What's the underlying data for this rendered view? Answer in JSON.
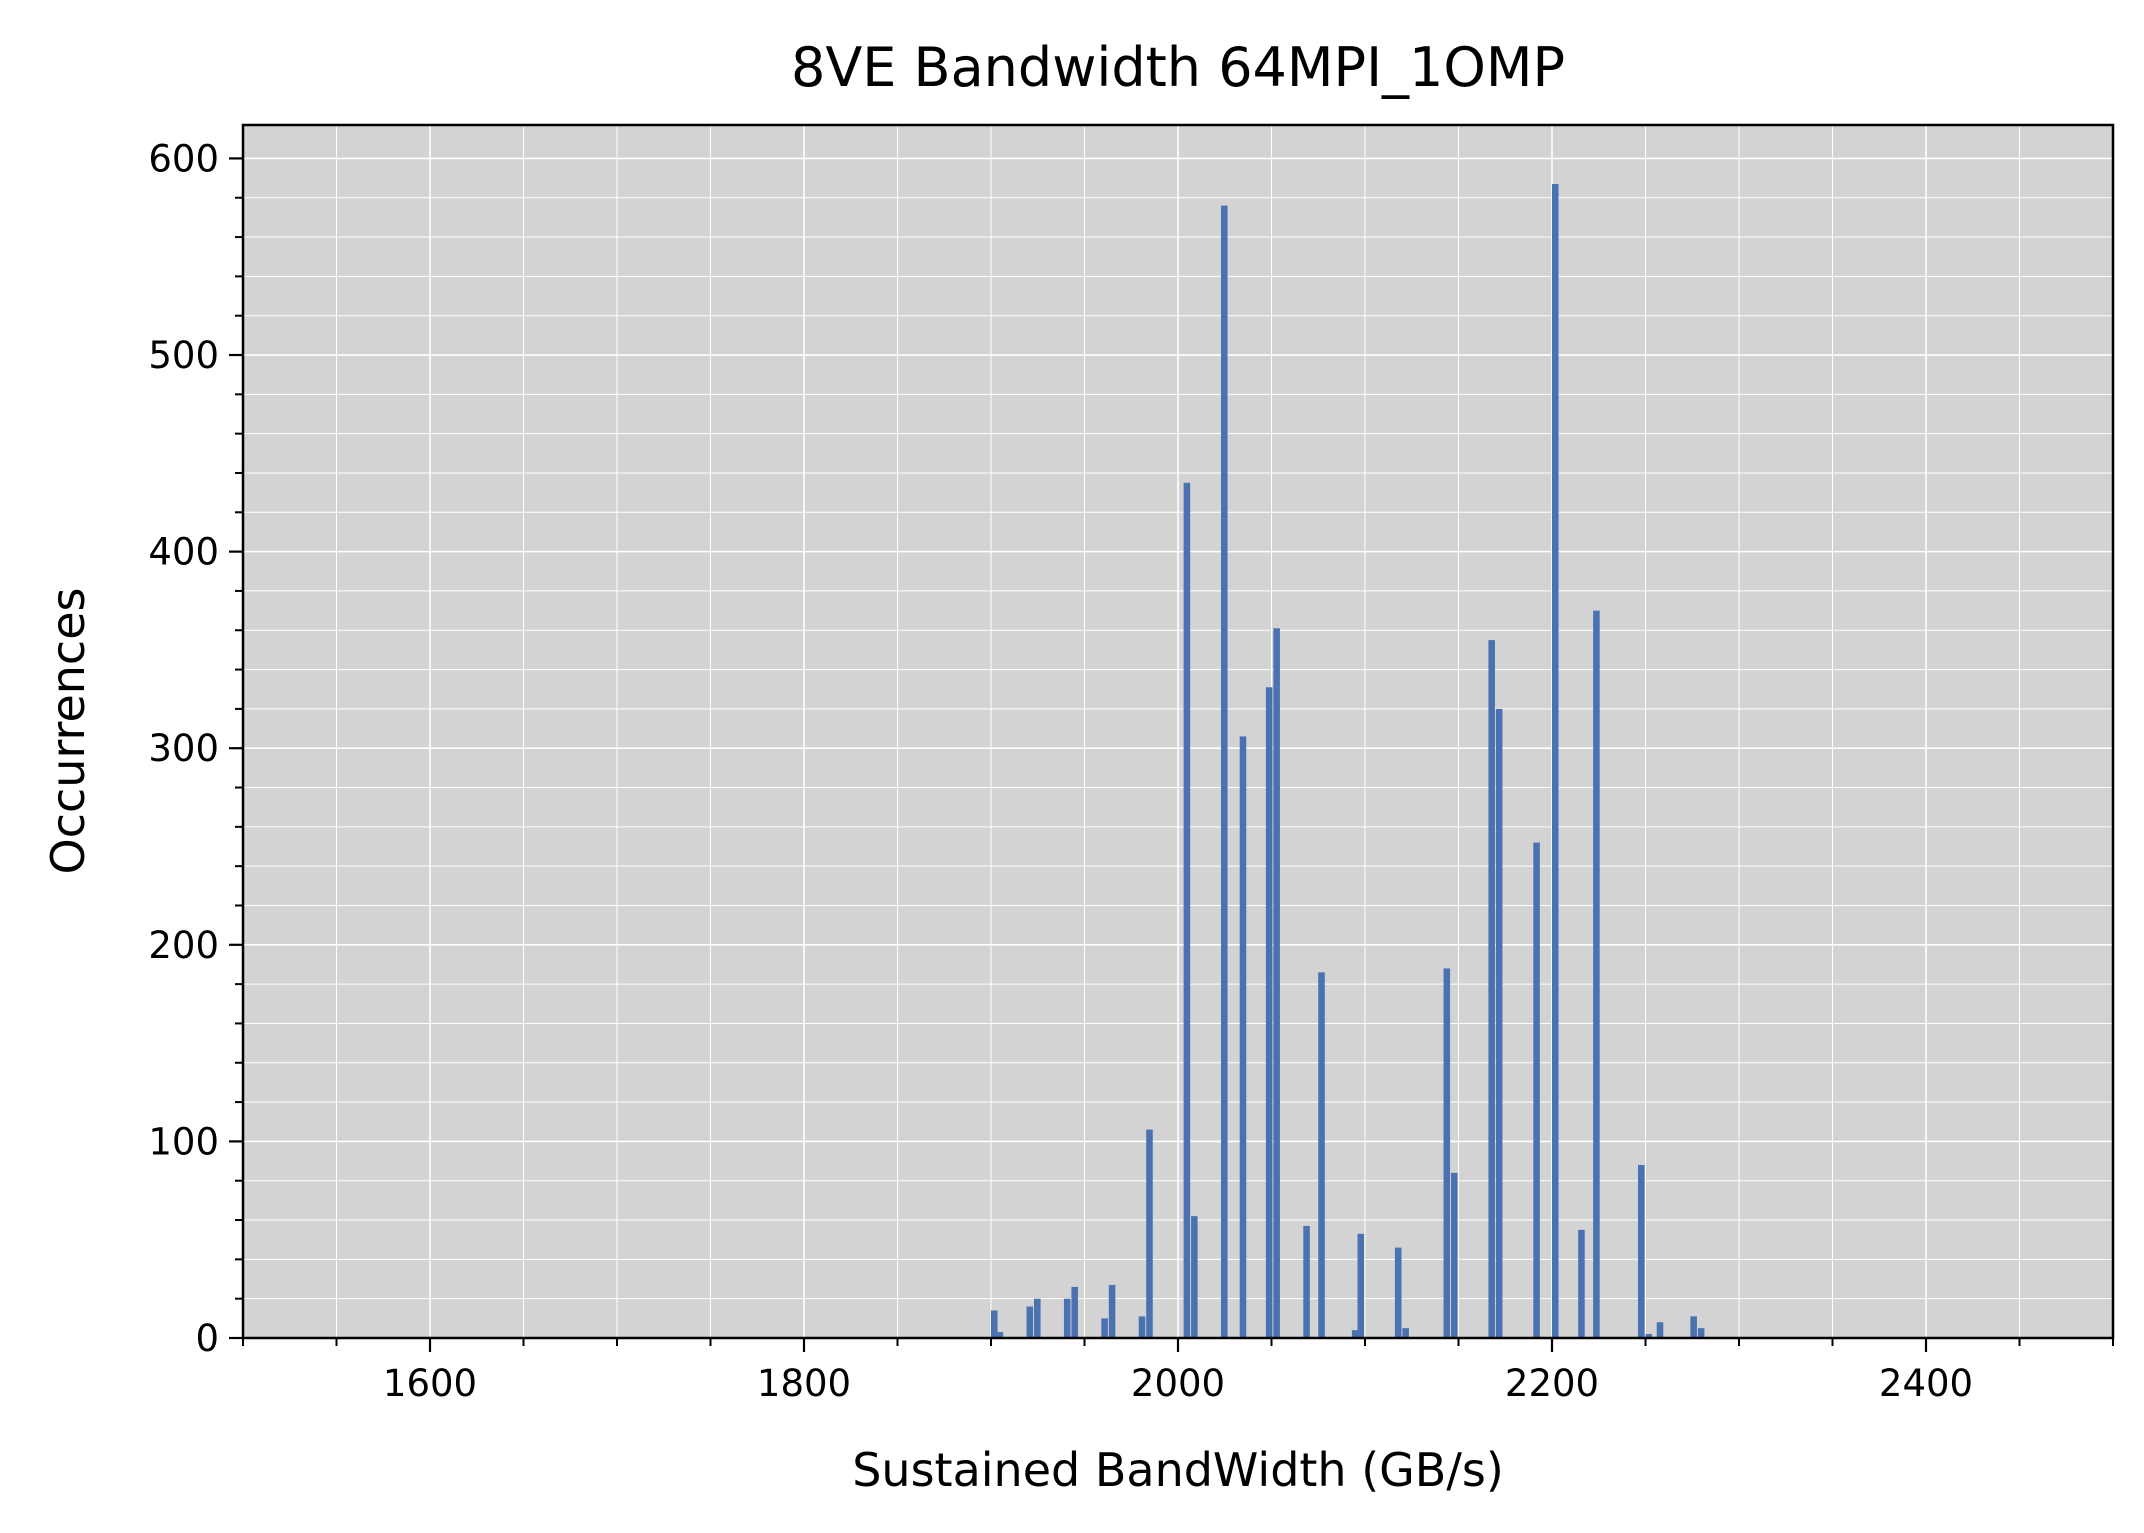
{
  "chart_data": {
    "type": "bar",
    "title": "8VE Bandwidth 64MPI_1OMP",
    "xlabel": "Sustained BandWidth (GB/s)",
    "ylabel": "Occurrences",
    "xlim": [
      1500,
      2500
    ],
    "ylim": [
      0,
      617
    ],
    "xticks": [
      1600,
      1800,
      2000,
      2200,
      2400
    ],
    "yticks": [
      0,
      100,
      200,
      300,
      400,
      500,
      600
    ],
    "x_minor_step": 50,
    "y_minor_step": 20,
    "grid": true,
    "bin_width": 3.5,
    "bins": [
      {
        "x": 1900,
        "count": 14
      },
      {
        "x": 1903,
        "count": 3
      },
      {
        "x": 1919,
        "count": 16
      },
      {
        "x": 1923,
        "count": 20
      },
      {
        "x": 1939,
        "count": 20
      },
      {
        "x": 1943,
        "count": 26
      },
      {
        "x": 1959,
        "count": 10
      },
      {
        "x": 1963,
        "count": 27
      },
      {
        "x": 1979,
        "count": 11
      },
      {
        "x": 1983,
        "count": 106
      },
      {
        "x": 2003,
        "count": 435
      },
      {
        "x": 2007,
        "count": 62
      },
      {
        "x": 2023,
        "count": 576
      },
      {
        "x": 2033,
        "count": 306
      },
      {
        "x": 2047,
        "count": 331
      },
      {
        "x": 2051,
        "count": 361
      },
      {
        "x": 2067,
        "count": 57
      },
      {
        "x": 2075,
        "count": 186
      },
      {
        "x": 2093,
        "count": 4
      },
      {
        "x": 2096,
        "count": 53
      },
      {
        "x": 2116,
        "count": 46
      },
      {
        "x": 2120,
        "count": 5
      },
      {
        "x": 2142,
        "count": 188
      },
      {
        "x": 2146,
        "count": 84
      },
      {
        "x": 2166,
        "count": 355
      },
      {
        "x": 2170,
        "count": 320
      },
      {
        "x": 2190,
        "count": 252
      },
      {
        "x": 2200,
        "count": 587
      },
      {
        "x": 2214,
        "count": 55
      },
      {
        "x": 2222,
        "count": 370
      },
      {
        "x": 2246,
        "count": 88
      },
      {
        "x": 2250,
        "count": 2
      },
      {
        "x": 2256,
        "count": 8
      },
      {
        "x": 2274,
        "count": 11
      },
      {
        "x": 2278,
        "count": 5
      }
    ],
    "colors": {
      "bar": "#4a72b0",
      "plot_background": "#d3d3d3",
      "grid": "#ffffff"
    }
  }
}
